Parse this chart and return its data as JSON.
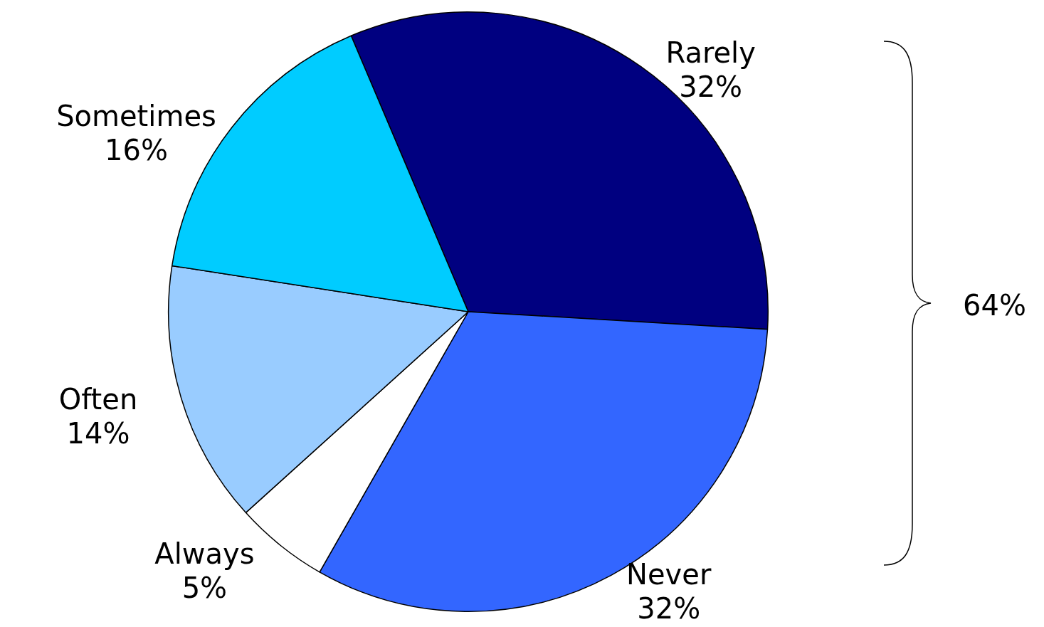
{
  "chart_data": {
    "type": "pie",
    "categories": [
      "Rarely",
      "Never",
      "Always",
      "Often",
      "Sometimes"
    ],
    "values": [
      32,
      32,
      5,
      14,
      16
    ],
    "colors": [
      "#000080",
      "#3366ff",
      "#ffffff",
      "#99ccff",
      "#00ccff"
    ],
    "value_labels": [
      "32%",
      "32%",
      "5%",
      "14%",
      "16%"
    ],
    "annotations": [
      "64%"
    ],
    "legend": false
  }
}
